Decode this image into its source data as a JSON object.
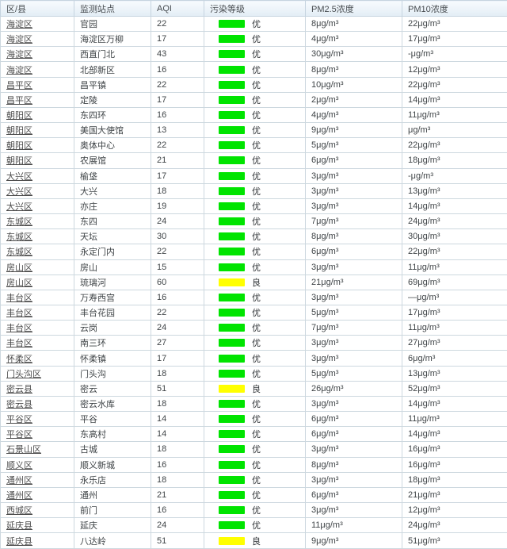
{
  "table": {
    "columns": [
      "区/县",
      "监测站点",
      "AQI",
      "污染等级",
      "PM2.5浓度",
      "PM10浓度"
    ],
    "level_colors": {
      "优": "#00e400",
      "良": "#ffff00"
    },
    "rows": [
      {
        "district": "海淀区",
        "station": "官园",
        "aqi": 22,
        "level": "优",
        "pm25": "8μg/m³",
        "pm10": "22μg/m³"
      },
      {
        "district": "海淀区",
        "station": "海淀区万柳",
        "aqi": 17,
        "level": "优",
        "pm25": "4μg/m³",
        "pm10": "17μg/m³"
      },
      {
        "district": "海淀区",
        "station": "西直门北",
        "aqi": 43,
        "level": "优",
        "pm25": "30μg/m³",
        "pm10": "-μg/m³"
      },
      {
        "district": "海淀区",
        "station": "北部新区",
        "aqi": 16,
        "level": "优",
        "pm25": "8μg/m³",
        "pm10": "12μg/m³"
      },
      {
        "district": "昌平区",
        "station": "昌平镇",
        "aqi": 22,
        "level": "优",
        "pm25": "10μg/m³",
        "pm10": "22μg/m³"
      },
      {
        "district": "昌平区",
        "station": "定陵",
        "aqi": 17,
        "level": "优",
        "pm25": "2μg/m³",
        "pm10": "14μg/m³"
      },
      {
        "district": "朝阳区",
        "station": "东四环",
        "aqi": 16,
        "level": "优",
        "pm25": "4μg/m³",
        "pm10": "11μg/m³"
      },
      {
        "district": "朝阳区",
        "station": "美国大使馆",
        "aqi": 13,
        "level": "优",
        "pm25": "9μg/m³",
        "pm10": "μg/m³"
      },
      {
        "district": "朝阳区",
        "station": "奥体中心",
        "aqi": 22,
        "level": "优",
        "pm25": "5μg/m³",
        "pm10": "22μg/m³"
      },
      {
        "district": "朝阳区",
        "station": "农展馆",
        "aqi": 21,
        "level": "优",
        "pm25": "6μg/m³",
        "pm10": "18μg/m³"
      },
      {
        "district": "大兴区",
        "station": "榆垡",
        "aqi": 17,
        "level": "优",
        "pm25": "3μg/m³",
        "pm10": "-μg/m³"
      },
      {
        "district": "大兴区",
        "station": "大兴",
        "aqi": 18,
        "level": "优",
        "pm25": "3μg/m³",
        "pm10": "13μg/m³"
      },
      {
        "district": "大兴区",
        "station": "亦庄",
        "aqi": 19,
        "level": "优",
        "pm25": "3μg/m³",
        "pm10": "14μg/m³"
      },
      {
        "district": "东城区",
        "station": "东四",
        "aqi": 24,
        "level": "优",
        "pm25": "7μg/m³",
        "pm10": "24μg/m³"
      },
      {
        "district": "东城区",
        "station": "天坛",
        "aqi": 30,
        "level": "优",
        "pm25": "8μg/m³",
        "pm10": "30μg/m³"
      },
      {
        "district": "东城区",
        "station": "永定门内",
        "aqi": 22,
        "level": "优",
        "pm25": "6μg/m³",
        "pm10": "22μg/m³"
      },
      {
        "district": "房山区",
        "station": "房山",
        "aqi": 15,
        "level": "优",
        "pm25": "3μg/m³",
        "pm10": "11μg/m³"
      },
      {
        "district": "房山区",
        "station": "琉璃河",
        "aqi": 60,
        "level": "良",
        "pm25": "21μg/m³",
        "pm10": "69μg/m³"
      },
      {
        "district": "丰台区",
        "station": "万寿西宫",
        "aqi": 16,
        "level": "优",
        "pm25": "3μg/m³",
        "pm10": "—μg/m³"
      },
      {
        "district": "丰台区",
        "station": "丰台花园",
        "aqi": 22,
        "level": "优",
        "pm25": "5μg/m³",
        "pm10": "17μg/m³"
      },
      {
        "district": "丰台区",
        "station": "云岗",
        "aqi": 24,
        "level": "优",
        "pm25": "7μg/m³",
        "pm10": "11μg/m³"
      },
      {
        "district": "丰台区",
        "station": "南三环",
        "aqi": 27,
        "level": "优",
        "pm25": "3μg/m³",
        "pm10": "27μg/m³"
      },
      {
        "district": "怀柔区",
        "station": "怀柔镇",
        "aqi": 17,
        "level": "优",
        "pm25": "3μg/m³",
        "pm10": "6μg/m³"
      },
      {
        "district": "门头沟区",
        "station": "门头沟",
        "aqi": 18,
        "level": "优",
        "pm25": "5μg/m³",
        "pm10": "13μg/m³"
      },
      {
        "district": "密云县",
        "station": "密云",
        "aqi": 51,
        "level": "良",
        "pm25": "26μg/m³",
        "pm10": "52μg/m³"
      },
      {
        "district": "密云县",
        "station": "密云水库",
        "aqi": 18,
        "level": "优",
        "pm25": "3μg/m³",
        "pm10": "14μg/m³"
      },
      {
        "district": "平谷区",
        "station": "平谷",
        "aqi": 14,
        "level": "优",
        "pm25": "6μg/m³",
        "pm10": "11μg/m³"
      },
      {
        "district": "平谷区",
        "station": "东高村",
        "aqi": 14,
        "level": "优",
        "pm25": "6μg/m³",
        "pm10": "14μg/m³"
      },
      {
        "district": "石景山区",
        "station": "古城",
        "aqi": 18,
        "level": "优",
        "pm25": "3μg/m³",
        "pm10": "16μg/m³"
      },
      {
        "district": "顺义区",
        "station": "顺义新城",
        "aqi": 16,
        "level": "优",
        "pm25": "8μg/m³",
        "pm10": "16μg/m³"
      },
      {
        "district": "通州区",
        "station": "永乐店",
        "aqi": 18,
        "level": "优",
        "pm25": "3μg/m³",
        "pm10": "18μg/m³"
      },
      {
        "district": "通州区",
        "station": "通州",
        "aqi": 21,
        "level": "优",
        "pm25": "6μg/m³",
        "pm10": "21μg/m³"
      },
      {
        "district": "西城区",
        "station": "前门",
        "aqi": 16,
        "level": "优",
        "pm25": "3μg/m³",
        "pm10": "12μg/m³"
      },
      {
        "district": "延庆县",
        "station": "延庆",
        "aqi": 24,
        "level": "优",
        "pm25": "11μg/m³",
        "pm10": "24μg/m³"
      },
      {
        "district": "延庆县",
        "station": "八达岭",
        "aqi": 51,
        "level": "良",
        "pm25": "9μg/m³",
        "pm10": "51μg/m³"
      }
    ]
  }
}
